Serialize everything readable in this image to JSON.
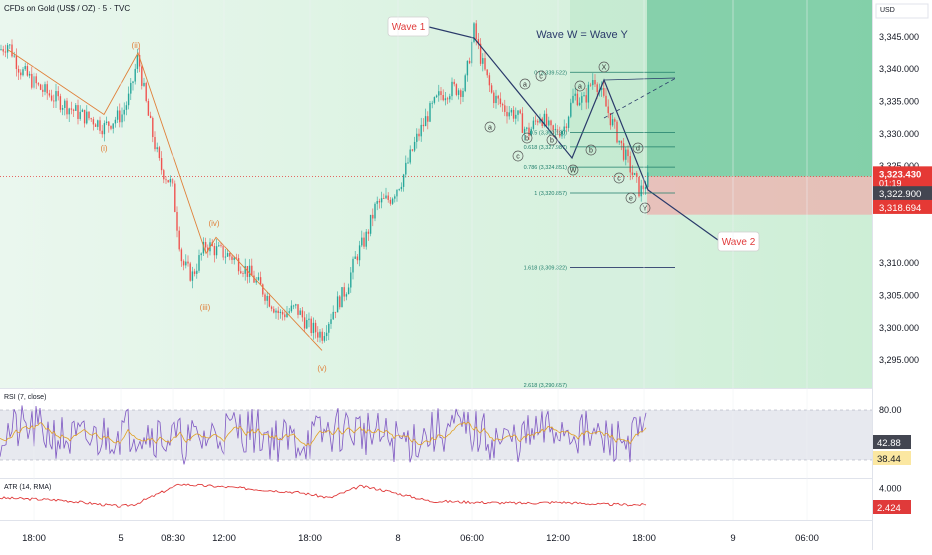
{
  "symbol": "CFDs on Gold (US$ / OZ) · 5 · TVC",
  "currency": "USD",
  "colors": {
    "up": "#26a69a",
    "down": "#ef5350",
    "wave_line": "#2a3a6a",
    "wave_label_text": "#e03a3a",
    "elliott_orange": "#e0803a",
    "green_zone": "#38b27d",
    "red_zone": "#f1a7a7",
    "rsi_line": "#7e57c2",
    "rsi_ma": "#e0a020",
    "atr_line": "#e03a3a",
    "fib": "#1e7d6a",
    "price_tag": "#e53935",
    "price_tag_dark": "#434651"
  },
  "annotations": {
    "wave1": "Wave 1",
    "wave2": "Wave 2",
    "wwy": "Wave W = Wave Y",
    "elliott": [
      "(i)",
      "(ii)",
      "(iii)",
      "(iv)",
      "(v)"
    ],
    "abc": [
      "a",
      "b",
      "c",
      "a",
      "b",
      "c",
      "a",
      "b",
      "c",
      "d",
      "e"
    ],
    "w": "W",
    "x": "X",
    "y": "Y"
  },
  "fib_labels": [
    "0 (3,339.522)",
    "0.5 (3,330.190)",
    "0.618 (3,327.987)",
    "0.786 (3,324.851)",
    "1 (3,320.857)",
    "1.618 (3,309.322)",
    "2.618 (3,290.657)"
  ],
  "price_axis": {
    "ticks": [
      "3,345.000",
      "3,340.000",
      "3,335.000",
      "3,330.000",
      "3,325.000",
      "3,310.000",
      "3,305.000",
      "3,300.000",
      "3,295.000"
    ],
    "last": "3,323.430",
    "countdown": "01:19",
    "mid": "3,322.900",
    "low": "3,318.694"
  },
  "time_axis": [
    "18:00",
    "5",
    "08:30",
    "12:00",
    "18:00",
    "8",
    "06:00",
    "12:00",
    "18:00",
    "9",
    "06:00"
  ],
  "rsi": {
    "title": "RSI (7, close)",
    "ticks": [
      "80.00"
    ],
    "value": "42.88",
    "ma": "38.44"
  },
  "atr": {
    "title": "ATR (14, RMA)",
    "ticks": [
      "4.000"
    ],
    "value": "2.424"
  },
  "chart_data": {
    "type": "candlestick",
    "title": "CFDs on Gold (US$ / OZ) · 5 · TVC",
    "y_axis": {
      "unit": "USD",
      "range": [
        3291,
        3350
      ]
    },
    "x_ticks": [
      "18:00",
      "5",
      "08:30",
      "12:00",
      "18:00",
      "8",
      "06:00",
      "12:00",
      "18:00",
      "9",
      "06:00"
    ],
    "series": [
      {
        "path_x": [
          0,
          8,
          20,
          40,
          60,
          80,
          96,
          104,
          112,
          122,
          130,
          138,
          148,
          160,
          172,
          182,
          192,
          206,
          216,
          232,
          246,
          262,
          280,
          296,
          310,
          322,
          334,
          346,
          356,
          366,
          376,
          390,
          402,
          416,
          428,
          440,
          452,
          464,
          474,
          482,
          492,
          504,
          516,
          528,
          540,
          552,
          564,
          574,
          584,
          594,
          604,
          614,
          624,
          632,
          640,
          648
        ],
        "path_y": [
          3343,
          3344,
          3340,
          3337,
          3335,
          3333,
          3332,
          3331,
          3332,
          3333,
          3336,
          3342,
          3333,
          3325,
          3322,
          3310,
          3308,
          3313,
          3312,
          3311,
          3309,
          3306,
          3302,
          3303,
          3300,
          3299,
          3303,
          3306,
          3311,
          3314,
          3319,
          3320,
          3323,
          3329,
          3333,
          3336,
          3337,
          3337,
          3346,
          3341,
          3336,
          3334,
          3333,
          3330,
          3333,
          3330,
          3331,
          3336,
          3335,
          3339,
          3335,
          3331,
          3327,
          3324,
          3321,
          3323
        ]
      }
    ],
    "overlays": {
      "elliott_impulse_prices": [
        3333,
        3342.5,
        3311.5,
        3314,
        3296.5
      ],
      "wave1_top": 3346,
      "wave2_target": 3314,
      "fib_levels": [
        3339.522,
        3330.19,
        3327.987,
        3324.851,
        3320.857,
        3309.322,
        3290.657
      ]
    },
    "rsi": {
      "range": [
        20,
        90
      ],
      "level_upper": 80,
      "level_lower": 20,
      "last": 42.88,
      "ma": 38.44
    },
    "atr": {
      "last": 2.424
    }
  }
}
